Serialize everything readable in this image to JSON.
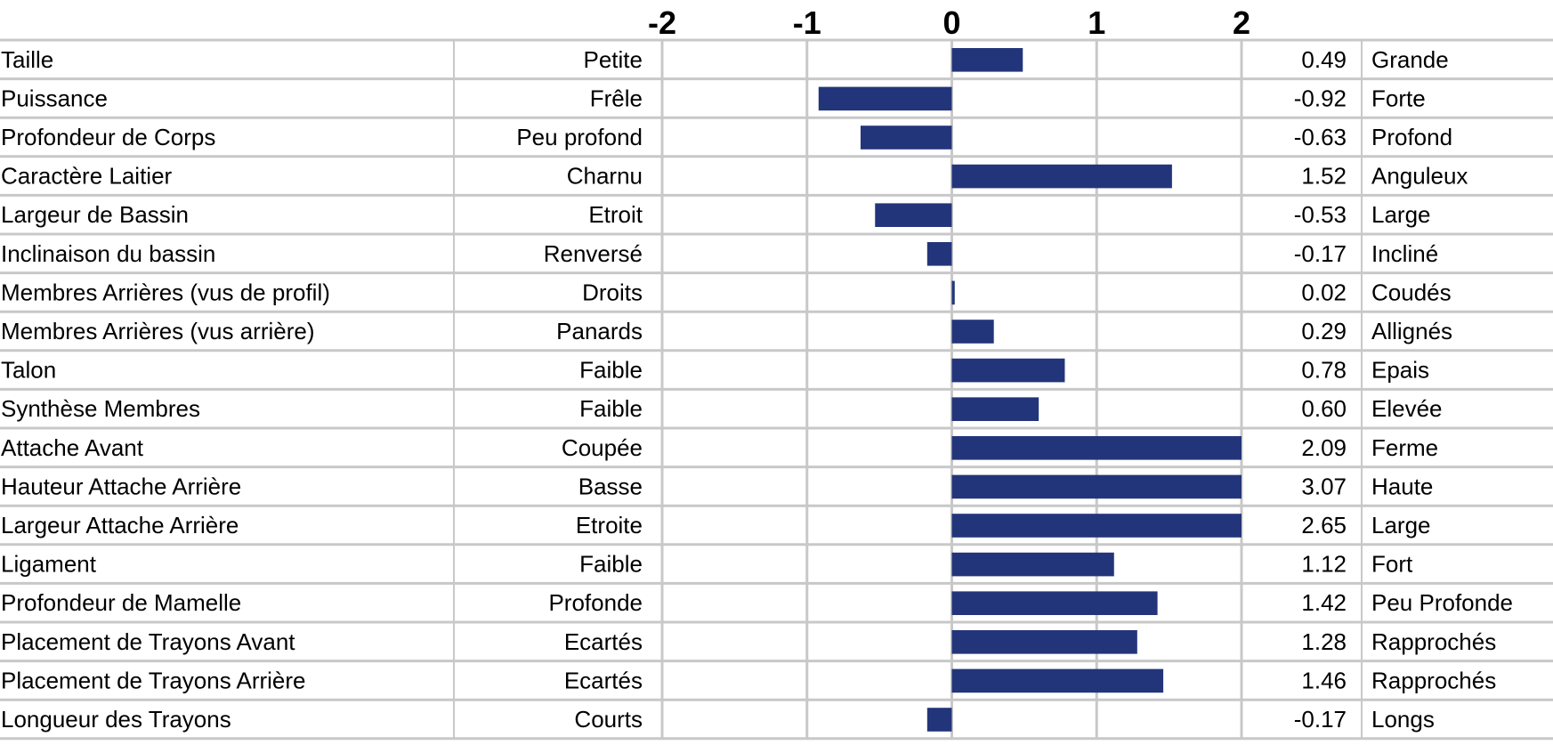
{
  "chart_data": {
    "type": "bar",
    "orientation": "horizontal",
    "xlim": [
      -2,
      2
    ],
    "x_ticks": [
      "-2",
      "-1",
      "0",
      "1",
      "2"
    ],
    "bar_color": "#23357a",
    "grid": true,
    "rows": [
      {
        "trait": "Taille",
        "low": "Petite",
        "value": 0.49,
        "value_label": "0.49",
        "high": "Grande"
      },
      {
        "trait": "Puissance",
        "low": "Frêle",
        "value": -0.92,
        "value_label": "-0.92",
        "high": "Forte"
      },
      {
        "trait": "Profondeur de Corps",
        "low": "Peu profond",
        "value": -0.63,
        "value_label": "-0.63",
        "high": "Profond"
      },
      {
        "trait": "Caractère Laitier",
        "low": "Charnu",
        "value": 1.52,
        "value_label": "1.52",
        "high": "Anguleux"
      },
      {
        "trait": "Largeur de Bassin",
        "low": "Etroit",
        "value": -0.53,
        "value_label": "-0.53",
        "high": "Large"
      },
      {
        "trait": "Inclinaison du bassin",
        "low": "Renversé",
        "value": -0.17,
        "value_label": "-0.17",
        "high": "Incliné"
      },
      {
        "trait": "Membres Arrières (vus de profil)",
        "low": "Droits",
        "value": 0.02,
        "value_label": "0.02",
        "high": "Coudés"
      },
      {
        "trait": "Membres Arrières (vus arrière)",
        "low": "Panards",
        "value": 0.29,
        "value_label": "0.29",
        "high": "Allignés"
      },
      {
        "trait": "Talon",
        "low": "Faible",
        "value": 0.78,
        "value_label": "0.78",
        "high": "Epais"
      },
      {
        "trait": "Synthèse Membres",
        "low": "Faible",
        "value": 0.6,
        "value_label": "0.60",
        "high": "Elevée"
      },
      {
        "trait": "Attache Avant",
        "low": "Coupée",
        "value": 2.09,
        "value_label": "2.09",
        "high": "Ferme"
      },
      {
        "trait": "Hauteur Attache Arrière",
        "low": "Basse",
        "value": 3.07,
        "value_label": "3.07",
        "high": "Haute"
      },
      {
        "trait": "Largeur Attache Arrière",
        "low": "Etroite",
        "value": 2.65,
        "value_label": "2.65",
        "high": "Large"
      },
      {
        "trait": "Ligament",
        "low": "Faible",
        "value": 1.12,
        "value_label": "1.12",
        "high": "Fort"
      },
      {
        "trait": "Profondeur de Mamelle",
        "low": "Profonde",
        "value": 1.42,
        "value_label": "1.42",
        "high": "Peu Profonde"
      },
      {
        "trait": "Placement de Trayons Avant",
        "low": "Ecartés",
        "value": 1.28,
        "value_label": "1.28",
        "high": "Rapprochés"
      },
      {
        "trait": "Placement de Trayons Arrière",
        "low": "Ecartés",
        "value": 1.46,
        "value_label": "1.46",
        "high": "Rapprochés"
      },
      {
        "trait": "Longueur des Trayons",
        "low": "Courts",
        "value": -0.17,
        "value_label": "-0.17",
        "high": "Longs"
      }
    ]
  }
}
